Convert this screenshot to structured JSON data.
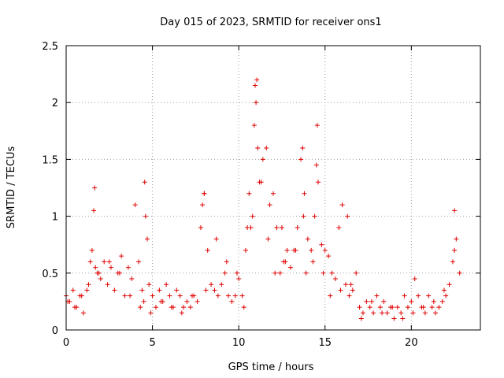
{
  "chart_data": {
    "type": "scatter",
    "title": "Day 015 of 2023, SRMTID for receiver ons1",
    "xlabel": "GPS time / hours",
    "ylabel": "SRMTID / TECUs",
    "xlim": [
      0,
      24
    ],
    "ylim": [
      0,
      2.5
    ],
    "x_ticks": [
      "0",
      "5",
      "10",
      "15",
      "20"
    ],
    "y_ticks": [
      "0",
      "0.5",
      "1",
      "1.5",
      "2",
      "2.5"
    ],
    "grid": true,
    "marker": "+",
    "color": "#e00000",
    "series": [
      {
        "name": "SRMTID",
        "x": [
          0.0,
          0.2,
          0.4,
          0.6,
          0.8,
          1.0,
          1.2,
          1.4,
          1.5,
          1.6,
          1.7,
          1.8,
          2.0,
          2.2,
          2.4,
          2.6,
          2.8,
          3.0,
          3.2,
          3.4,
          3.6,
          3.8,
          4.0,
          4.2,
          4.4,
          4.5,
          4.6,
          4.7,
          4.8,
          5.0,
          5.2,
          5.4,
          5.6,
          5.8,
          6.0,
          6.2,
          6.4,
          6.6,
          6.8,
          7.0,
          7.2,
          7.4,
          7.6,
          7.8,
          7.9,
          8.0,
          8.2,
          8.4,
          8.6,
          8.8,
          9.0,
          9.2,
          9.4,
          9.6,
          9.8,
          10.0,
          10.2,
          10.4,
          10.5,
          10.6,
          10.8,
          10.9,
          11.0,
          11.1,
          11.2,
          11.4,
          11.6,
          11.8,
          12.0,
          12.2,
          12.4,
          12.6,
          12.8,
          13.0,
          13.2,
          13.4,
          13.6,
          13.7,
          13.8,
          14.0,
          14.2,
          14.4,
          14.5,
          14.6,
          14.8,
          15.0,
          15.2,
          15.4,
          15.6,
          15.8,
          16.0,
          16.2,
          16.4,
          16.6,
          16.8,
          17.0,
          17.2,
          17.4,
          17.6,
          17.8,
          18.0,
          18.2,
          18.4,
          18.6,
          18.8,
          19.0,
          19.2,
          19.4,
          19.6,
          19.8,
          20.0,
          20.2,
          20.4,
          20.6,
          20.8,
          21.0,
          21.2,
          21.4,
          21.6,
          21.8,
          22.0,
          22.2,
          22.4,
          22.6,
          22.8,
          0.1,
          0.5,
          0.9,
          1.3,
          1.9,
          2.5,
          3.1,
          3.7,
          4.3,
          4.9,
          5.5,
          6.1,
          6.7,
          7.3,
          8.1,
          8.7,
          9.3,
          9.9,
          10.3,
          10.7,
          11.3,
          11.7,
          12.1,
          12.7,
          13.3,
          13.9,
          14.3,
          14.9,
          15.3,
          15.9,
          16.5,
          17.1,
          17.7,
          18.3,
          18.9,
          19.5,
          20.1,
          20.7,
          21.3,
          21.9,
          22.5,
          10.95,
          11.05,
          14.55,
          4.55,
          1.65,
          8.0,
          13.75,
          16.3,
          22.5,
          12.5
        ],
        "y": [
          0.3,
          0.25,
          0.35,
          0.2,
          0.3,
          0.15,
          0.35,
          0.6,
          0.7,
          1.05,
          0.55,
          0.5,
          0.45,
          0.6,
          0.4,
          0.55,
          0.35,
          0.5,
          0.65,
          0.3,
          0.55,
          0.45,
          1.1,
          0.6,
          0.35,
          0.25,
          1.0,
          0.8,
          0.4,
          0.3,
          0.2,
          0.35,
          0.25,
          0.4,
          0.3,
          0.2,
          0.35,
          0.3,
          0.2,
          0.25,
          0.2,
          0.3,
          0.25,
          0.9,
          1.1,
          1.2,
          0.7,
          0.4,
          0.35,
          0.3,
          0.4,
          0.5,
          0.3,
          0.25,
          0.3,
          0.45,
          0.3,
          0.7,
          0.9,
          1.2,
          1.0,
          1.8,
          2.0,
          1.6,
          1.3,
          1.5,
          1.6,
          1.1,
          1.2,
          0.9,
          0.5,
          0.6,
          0.7,
          0.55,
          0.7,
          0.9,
          1.5,
          1.6,
          1.2,
          0.8,
          0.7,
          1.0,
          1.45,
          1.3,
          0.75,
          0.7,
          0.65,
          0.5,
          0.45,
          0.9,
          1.1,
          0.4,
          0.3,
          0.35,
          0.5,
          0.2,
          0.15,
          0.25,
          0.2,
          0.15,
          0.3,
          0.2,
          0.25,
          0.15,
          0.2,
          0.1,
          0.2,
          0.15,
          0.3,
          0.2,
          0.25,
          0.45,
          0.3,
          0.2,
          0.15,
          0.3,
          0.2,
          0.15,
          0.2,
          0.25,
          0.3,
          0.4,
          0.6,
          0.8,
          0.5,
          0.25,
          0.2,
          0.3,
          0.4,
          0.5,
          0.6,
          0.5,
          0.3,
          0.2,
          0.15,
          0.25,
          0.2,
          0.15,
          0.3,
          0.35,
          0.8,
          0.6,
          0.5,
          0.2,
          0.9,
          1.3,
          0.8,
          0.5,
          0.6,
          0.7,
          0.5,
          0.6,
          0.5,
          0.3,
          0.35,
          0.4,
          0.1,
          0.25,
          0.15,
          0.2,
          0.1,
          0.15,
          0.2,
          0.25,
          0.35,
          0.7,
          2.15,
          2.2,
          1.8,
          1.3,
          1.25,
          1.2,
          1.0,
          1.0,
          1.05,
          0.9
        ]
      }
    ]
  }
}
